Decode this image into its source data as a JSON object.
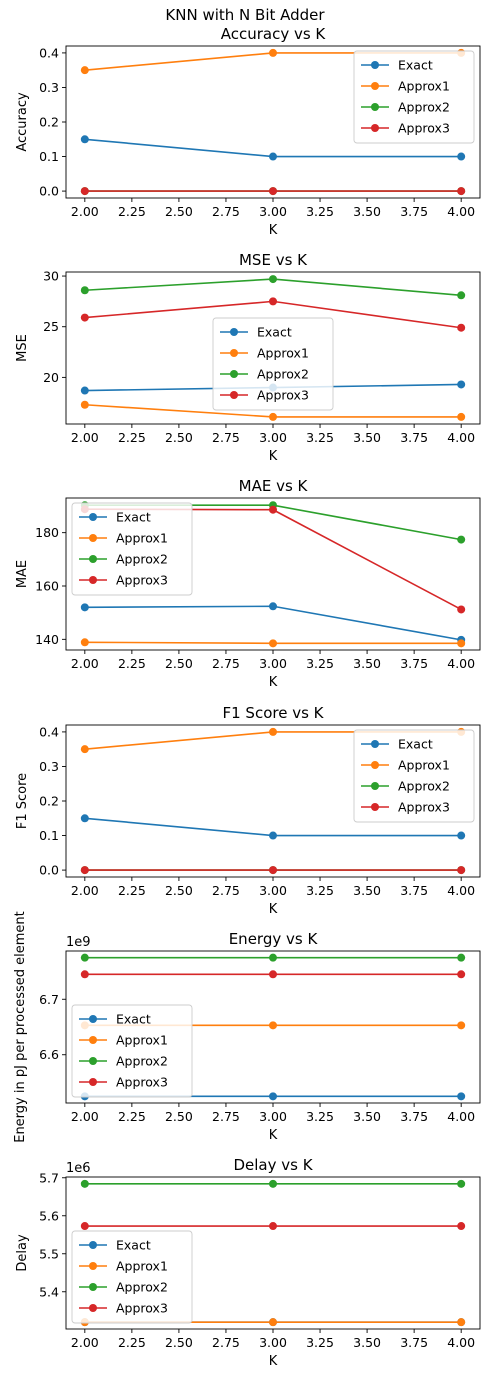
{
  "figure": {
    "suptitle": "KNN with N Bit Adder",
    "colors": {
      "Exact": "#1f77b4",
      "Approx1": "#ff7f0e",
      "Approx2": "#2ca02c",
      "Approx3": "#d62728"
    }
  },
  "chart_data": [
    {
      "type": "line",
      "title": "Accuracy vs K",
      "xlabel": "K",
      "ylabel": "Accuracy",
      "xlim": [
        1.9,
        4.1
      ],
      "ylim": [
        -0.02,
        0.42
      ],
      "xticks": [
        "2.00",
        "2.25",
        "2.50",
        "2.75",
        "3.00",
        "3.25",
        "3.50",
        "3.75",
        "4.00"
      ],
      "yticks": [
        "0.0",
        "0.1",
        "0.2",
        "0.3",
        "0.4"
      ],
      "legend": "upper-right",
      "x": [
        2,
        3,
        4
      ],
      "series": [
        {
          "name": "Exact",
          "values": [
            0.15,
            0.1,
            0.1
          ]
        },
        {
          "name": "Approx1",
          "values": [
            0.35,
            0.4,
            0.4
          ]
        },
        {
          "name": "Approx2",
          "values": [
            0.0,
            0.0,
            0.0
          ]
        },
        {
          "name": "Approx3",
          "values": [
            0.0,
            0.0,
            0.0
          ]
        }
      ]
    },
    {
      "type": "line",
      "title": "MSE vs K",
      "xlabel": "K",
      "ylabel": "MSE",
      "xlim": [
        1.9,
        4.1
      ],
      "ylim": [
        15.4,
        30.4
      ],
      "xticks": [
        "2.00",
        "2.25",
        "2.50",
        "2.75",
        "3.00",
        "3.25",
        "3.50",
        "3.75",
        "4.00"
      ],
      "yticks": [
        "20",
        "25",
        "30"
      ],
      "legend": "center",
      "x": [
        2,
        3,
        4
      ],
      "series": [
        {
          "name": "Exact",
          "values": [
            18.7,
            19.0,
            19.3
          ]
        },
        {
          "name": "Approx1",
          "values": [
            17.3,
            16.1,
            16.1
          ]
        },
        {
          "name": "Approx2",
          "values": [
            28.6,
            29.7,
            28.1
          ]
        },
        {
          "name": "Approx3",
          "values": [
            25.9,
            27.5,
            24.9
          ]
        }
      ]
    },
    {
      "type": "line",
      "title": "MAE vs K",
      "xlabel": "K",
      "ylabel": "MAE",
      "xlim": [
        1.9,
        4.1
      ],
      "ylim": [
        136,
        193
      ],
      "xticks": [
        "2.00",
        "2.25",
        "2.50",
        "2.75",
        "3.00",
        "3.25",
        "3.50",
        "3.75",
        "4.00"
      ],
      "yticks": [
        "140",
        "160",
        "180"
      ],
      "legend": "upper-left",
      "x": [
        2,
        3,
        4
      ],
      "series": [
        {
          "name": "Exact",
          "values": [
            152.0,
            152.4,
            139.8
          ]
        },
        {
          "name": "Approx1",
          "values": [
            138.9,
            138.5,
            138.5
          ]
        },
        {
          "name": "Approx2",
          "values": [
            190.3,
            190.3,
            177.4
          ]
        },
        {
          "name": "Approx3",
          "values": [
            188.8,
            188.6,
            151.2
          ]
        }
      ]
    },
    {
      "type": "line",
      "title": "F1 Score vs K",
      "xlabel": "K",
      "ylabel": "F1 Score",
      "xlim": [
        1.9,
        4.1
      ],
      "ylim": [
        -0.02,
        0.42
      ],
      "xticks": [
        "2.00",
        "2.25",
        "2.50",
        "2.75",
        "3.00",
        "3.25",
        "3.50",
        "3.75",
        "4.00"
      ],
      "yticks": [
        "0.0",
        "0.1",
        "0.2",
        "0.3",
        "0.4"
      ],
      "legend": "upper-right",
      "x": [
        2,
        3,
        4
      ],
      "series": [
        {
          "name": "Exact",
          "values": [
            0.15,
            0.1,
            0.1
          ]
        },
        {
          "name": "Approx1",
          "values": [
            0.35,
            0.4,
            0.4
          ]
        },
        {
          "name": "Approx2",
          "values": [
            0.0,
            0.0,
            0.0
          ]
        },
        {
          "name": "Approx3",
          "values": [
            0.0,
            0.0,
            0.0
          ]
        }
      ]
    },
    {
      "type": "line",
      "title": "Energy vs K",
      "xlabel": "K",
      "ylabel": "Energy in pJ per processed element",
      "offset_text": "1e9",
      "xlim": [
        1.9,
        4.1
      ],
      "ylim": [
        6.513,
        6.787
      ],
      "xticks": [
        "2.00",
        "2.25",
        "2.50",
        "2.75",
        "3.00",
        "3.25",
        "3.50",
        "3.75",
        "4.00"
      ],
      "yticks": [
        "6.6",
        "6.7"
      ],
      "legend": "lower-left",
      "x": [
        2,
        3,
        4
      ],
      "series": [
        {
          "name": "Exact",
          "values": [
            6.525,
            6.525,
            6.525
          ]
        },
        {
          "name": "Approx1",
          "values": [
            6.653,
            6.653,
            6.653
          ]
        },
        {
          "name": "Approx2",
          "values": [
            6.775,
            6.775,
            6.775
          ]
        },
        {
          "name": "Approx3",
          "values": [
            6.745,
            6.745,
            6.745
          ]
        }
      ]
    },
    {
      "type": "line",
      "title": "Delay vs K",
      "xlabel": "K",
      "ylabel": "Delay",
      "offset_text": "1e6",
      "xlim": [
        1.9,
        4.1
      ],
      "ylim": [
        5.302,
        5.702
      ],
      "xticks": [
        "2.00",
        "2.25",
        "2.50",
        "2.75",
        "3.00",
        "3.25",
        "3.50",
        "3.75",
        "4.00"
      ],
      "yticks": [
        "5.4",
        "5.5",
        "5.6",
        "5.7"
      ],
      "legend": "lower-left",
      "x": [
        2,
        3,
        4
      ],
      "series": [
        {
          "name": "Exact",
          "values": [
            5.32,
            5.32,
            5.32
          ]
        },
        {
          "name": "Approx1",
          "values": [
            5.32,
            5.32,
            5.32
          ]
        },
        {
          "name": "Approx2",
          "values": [
            5.684,
            5.684,
            5.684
          ]
        },
        {
          "name": "Approx3",
          "values": [
            5.573,
            5.573,
            5.573
          ]
        }
      ]
    }
  ]
}
